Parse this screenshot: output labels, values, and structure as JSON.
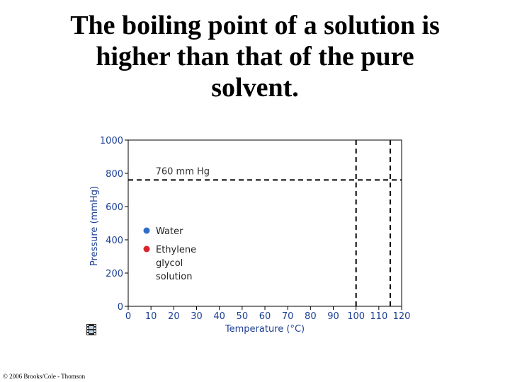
{
  "slide": {
    "title_lines": [
      "The boiling point of a solution is",
      "higher than that of the pure",
      "solvent."
    ],
    "credit": "© 2006 Brooks/Cole - Thomson",
    "film_icon": "film-strip-icon"
  },
  "chart_data": {
    "type": "line",
    "title": "",
    "xlabel": "Temperature (°C)",
    "ylabel": "Pressure (mmHg)",
    "xlim": [
      0,
      120
    ],
    "ylim": [
      0,
      1000
    ],
    "xticks": [
      "0",
      "10",
      "20",
      "30",
      "40",
      "50",
      "60",
      "70",
      "80",
      "90",
      "100",
      "110",
      "120"
    ],
    "yticks": [
      "0",
      "200",
      "400",
      "600",
      "800",
      "1000"
    ],
    "grid": false,
    "reference_lines": [
      {
        "axis": "y",
        "value": 760,
        "label": "760 mm Hg",
        "style": "dashed"
      },
      {
        "axis": "x",
        "value": 100,
        "style": "dashed"
      },
      {
        "axis": "x",
        "value": 115,
        "style": "dashed"
      }
    ],
    "legend": {
      "placement": "center-left",
      "entries": [
        {
          "label_lines": [
            "Water"
          ],
          "color": "#2f6fc9"
        },
        {
          "label_lines": [
            "Ethylene",
            "glycol",
            "solution"
          ],
          "color": "#d9262c"
        }
      ]
    },
    "colors": {
      "axis_text": "#1c3f94",
      "frame": "#000000"
    }
  }
}
